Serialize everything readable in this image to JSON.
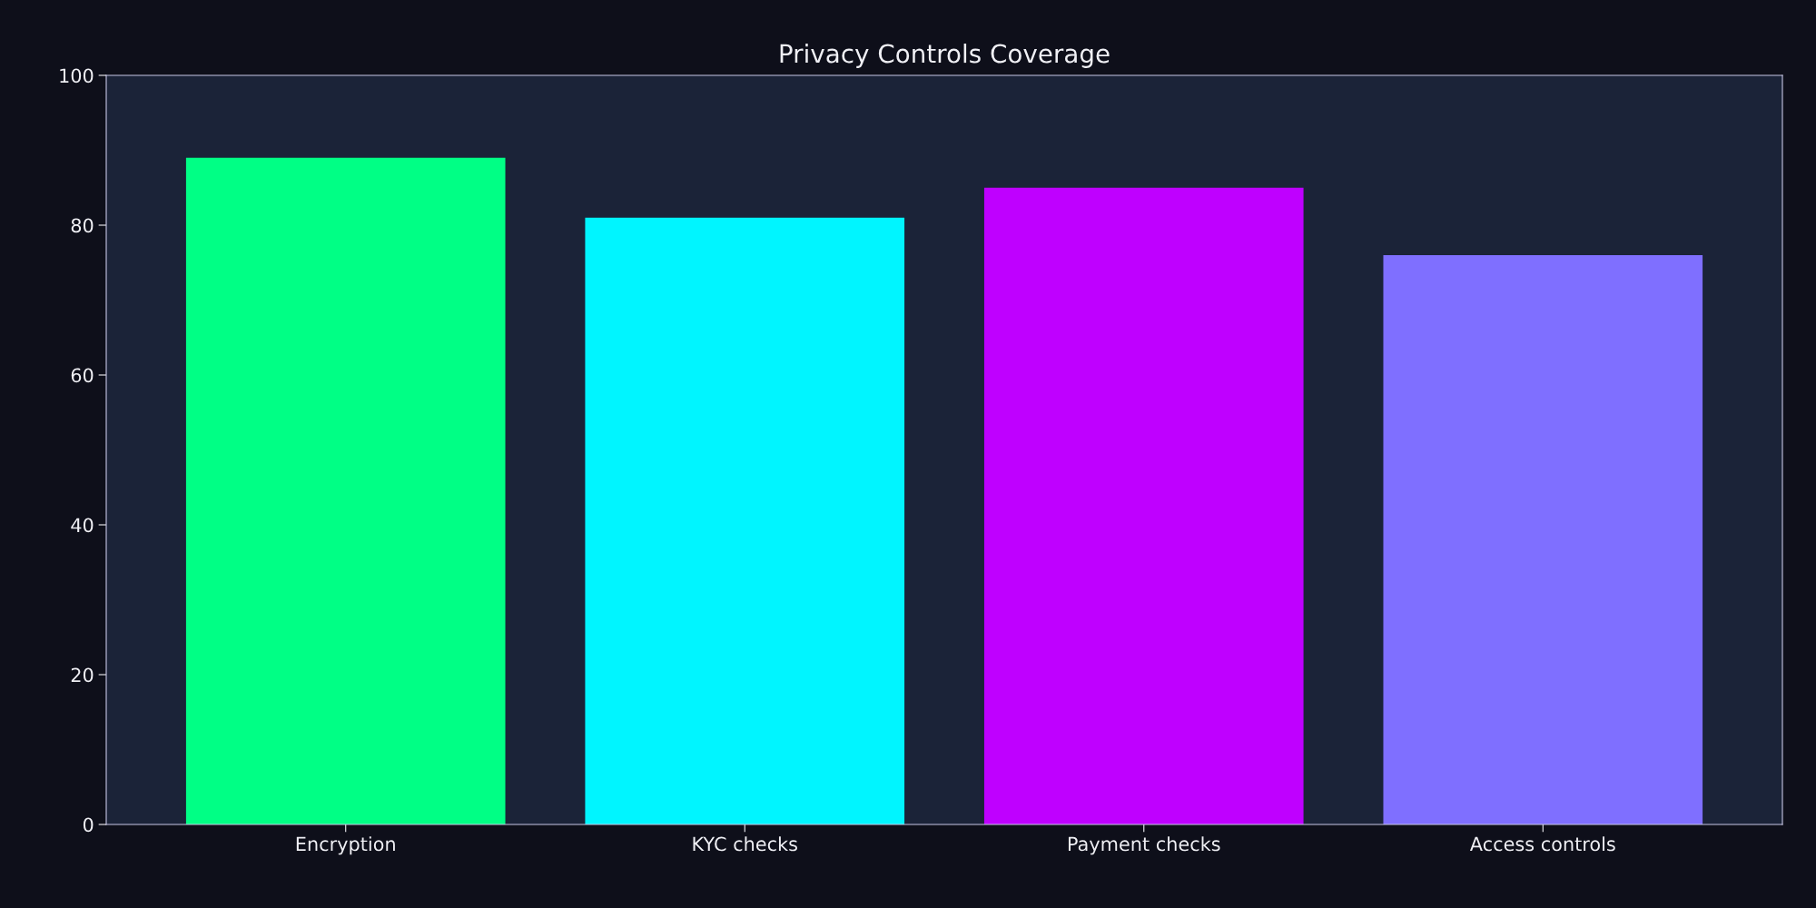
{
  "chart_data": {
    "type": "bar",
    "title": "Privacy Controls Coverage",
    "categories": [
      "Encryption",
      "KYC checks",
      "Payment checks",
      "Access controls"
    ],
    "values": [
      89,
      81,
      85,
      76
    ],
    "colors": [
      "#00ff85",
      "#00f5ff",
      "#bf00ff",
      "#7f6fff"
    ],
    "ylim": [
      0,
      100
    ],
    "yticks": [
      0,
      20,
      40,
      60,
      80,
      100
    ],
    "grid": false,
    "legend": false
  }
}
